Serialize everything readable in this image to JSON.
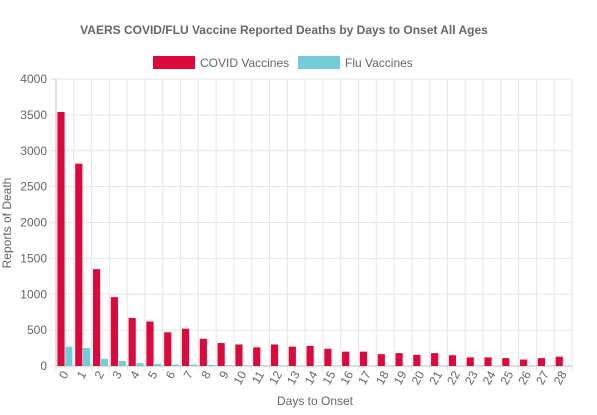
{
  "chart_data": {
    "type": "bar",
    "title": "VAERS COVID/FLU Vaccine Reported Deaths by Days to Onset All Ages",
    "xlabel": "Days to Onset",
    "ylabel": "Reports of Death",
    "ylim": [
      0,
      4000
    ],
    "yticks": [
      0,
      500,
      1000,
      1500,
      2000,
      2500,
      3000,
      3500,
      4000
    ],
    "legend_position": "top",
    "grid": true,
    "categories": [
      "0",
      "1",
      "2",
      "3",
      "4",
      "5",
      "6",
      "7",
      "8",
      "9",
      "10",
      "11",
      "12",
      "13",
      "14",
      "15",
      "16",
      "17",
      "18",
      "19",
      "20",
      "21",
      "22",
      "23",
      "24",
      "25",
      "26",
      "27",
      "28"
    ],
    "series": [
      {
        "name": "COVID Vaccines",
        "color": "#dc0a3c",
        "values": [
          3540,
          2820,
          1350,
          960,
          670,
          620,
          470,
          520,
          380,
          320,
          300,
          260,
          300,
          270,
          280,
          240,
          200,
          200,
          165,
          180,
          155,
          180,
          150,
          120,
          120,
          110,
          90,
          110,
          130
        ]
      },
      {
        "name": "Flu Vaccines",
        "color": "#74ccd8",
        "values": [
          270,
          250,
          100,
          70,
          40,
          30,
          20,
          20,
          15,
          10,
          8,
          8,
          8,
          6,
          6,
          5,
          5,
          5,
          4,
          4,
          4,
          4,
          3,
          3,
          3,
          3,
          2,
          2,
          2
        ]
      }
    ]
  }
}
